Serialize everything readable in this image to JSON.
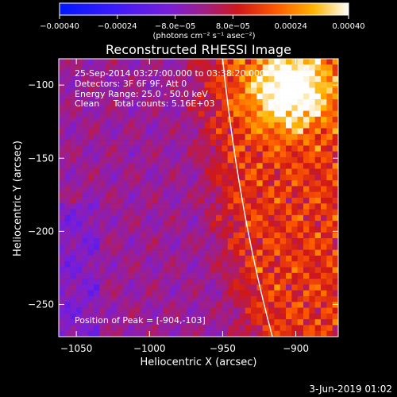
{
  "chart_data": {
    "type": "heatmap",
    "title": "Reconstructed RHESSI Image",
    "xlabel": "Heliocentric X (arcsec)",
    "ylabel": "Heliocentric Y (arcsec)",
    "xlim": [
      -1062,
      -871
    ],
    "ylim": [
      -272,
      -82
    ],
    "xticks": [
      -1050,
      -1000,
      -950,
      -900
    ],
    "yticks": [
      -100,
      -150,
      -200,
      -250
    ],
    "xtick_labels": [
      "−1050",
      "−1000",
      "−950",
      "−900"
    ],
    "ytick_labels": [
      "−100",
      "−150",
      "−200",
      "−250"
    ],
    "colorbar": {
      "range": [
        -0.0004,
        0.0004
      ],
      "ticks": [
        -0.0004,
        -0.00024,
        -8e-05,
        8e-05,
        0.00024,
        0.0004
      ],
      "tick_labels": [
        "−0.00040",
        "−0.00024",
        "−8.0e−05",
        "8.0e−05",
        "0.00024",
        "0.00040"
      ],
      "unit_label": "(photons cm⁻² s⁻¹ asec⁻²)",
      "colors": [
        "#0018ff",
        "#3a1aff",
        "#7a1ed8",
        "#a01e88",
        "#d01818",
        "#ff5a00",
        "#ffb400",
        "#ffffff"
      ]
    },
    "annotations": {
      "time_range": "25-Sep-2014 03:27:00.000 to 03:38:20.000",
      "detectors": "Detectors: 3F 6F 9F, Att 0",
      "energy_range": "Energy Range: 25.0 - 50.0 keV",
      "algorithm": "Clean     Total counts: 5.16E+03",
      "peak": "Position of Peak = [-904,-103]"
    },
    "peak": {
      "x": -904,
      "y": -103
    },
    "limb": {
      "x_top": -950,
      "x_bottom": -916
    }
  },
  "footer": {
    "date": "3-Jun-2019 01:02"
  }
}
